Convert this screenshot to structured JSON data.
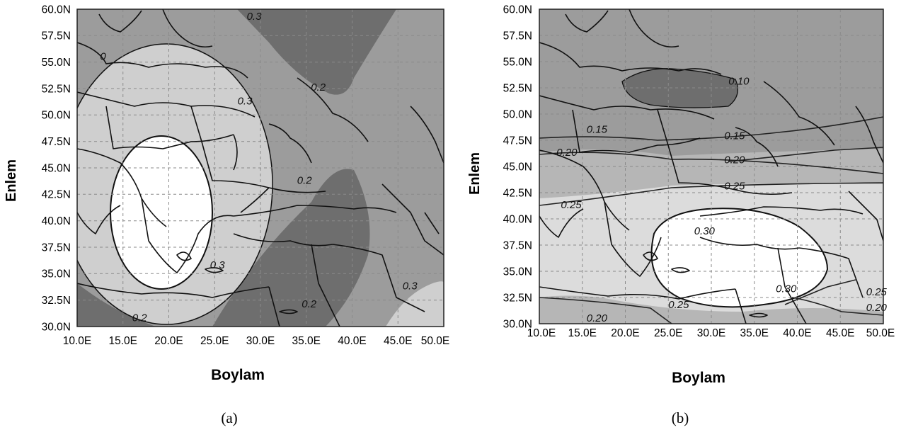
{
  "panels": [
    {
      "caption": "(a)",
      "xlabel": "Boylam",
      "ylabel": "Enlem",
      "x_ticks": [
        "10.0E",
        "15.0E",
        "20.0E",
        "25.0E",
        "30.0E",
        "35.0E",
        "40.0E",
        "45.0E",
        "50.0E"
      ],
      "y_ticks": [
        "60.0N",
        "57.5N",
        "55.0N",
        "52.5N",
        "50.0N",
        "47.5N",
        "45.0N",
        "42.5N",
        "40.0N",
        "37.5N",
        "35.0N",
        "32.5N",
        "30.0N"
      ],
      "contour_labels": [
        {
          "text": "0.3",
          "lon": 28.5,
          "lat": 59.0
        },
        {
          "text": "0.2",
          "lon": 35.5,
          "lat": 52.3
        },
        {
          "text": "0.3",
          "lon": 27.5,
          "lat": 51.0
        },
        {
          "text": "0.2",
          "lon": 34.0,
          "lat": 43.5
        },
        {
          "text": "0.3",
          "lon": 24.5,
          "lat": 35.5
        },
        {
          "text": "0.2",
          "lon": 34.5,
          "lat": 31.8
        },
        {
          "text": "0.3",
          "lon": 45.5,
          "lat": 33.5
        },
        {
          "text": "0.2",
          "lon": 16.0,
          "lat": 30.5
        },
        {
          "text": "0",
          "lon": 12.5,
          "lat": 55.2
        }
      ]
    },
    {
      "caption": "(b)",
      "xlabel": "Boylam",
      "ylabel": "Enlem",
      "x_ticks": [
        "10.0E",
        "15.0E",
        "20.0E",
        "25.0E",
        "30.0E",
        "35.0E",
        "40.0E",
        "45.0E",
        "50.0E"
      ],
      "y_ticks": [
        "60.0N",
        "57.5N",
        "55.0N",
        "52.5N",
        "50.0N",
        "47.5N",
        "45.0N",
        "42.5N",
        "40.0N",
        "37.5N",
        "35.0N",
        "32.5N",
        "30.0N"
      ],
      "contour_labels": [
        {
          "text": "0.10",
          "lon": 32.0,
          "lat": 52.8
        },
        {
          "text": "0.15",
          "lon": 15.5,
          "lat": 48.2
        },
        {
          "text": "0.15",
          "lon": 31.5,
          "lat": 47.6
        },
        {
          "text": "0.20",
          "lon": 12.0,
          "lat": 46.0
        },
        {
          "text": "0.20",
          "lon": 31.5,
          "lat": 45.3
        },
        {
          "text": "0.25",
          "lon": 31.5,
          "lat": 42.8
        },
        {
          "text": "0.25",
          "lon": 12.5,
          "lat": 41.0
        },
        {
          "text": "0.30",
          "lon": 28.0,
          "lat": 38.5
        },
        {
          "text": "0.30",
          "lon": 37.5,
          "lat": 33.0
        },
        {
          "text": "0.25",
          "lon": 48.0,
          "lat": 32.7
        },
        {
          "text": "0.20",
          "lon": 48.0,
          "lat": 31.2
        },
        {
          "text": "0.25",
          "lon": 25.0,
          "lat": 31.5
        },
        {
          "text": "0.20",
          "lon": 15.5,
          "lat": 30.2
        }
      ]
    }
  ],
  "colors": {
    "level_low": "#6e6e6e",
    "level_mid": "#9c9c9c",
    "level_high": "#cfcfcf",
    "level_top": "#ffffff",
    "coastline": "#111111",
    "grid": "#8a8a8a"
  }
}
